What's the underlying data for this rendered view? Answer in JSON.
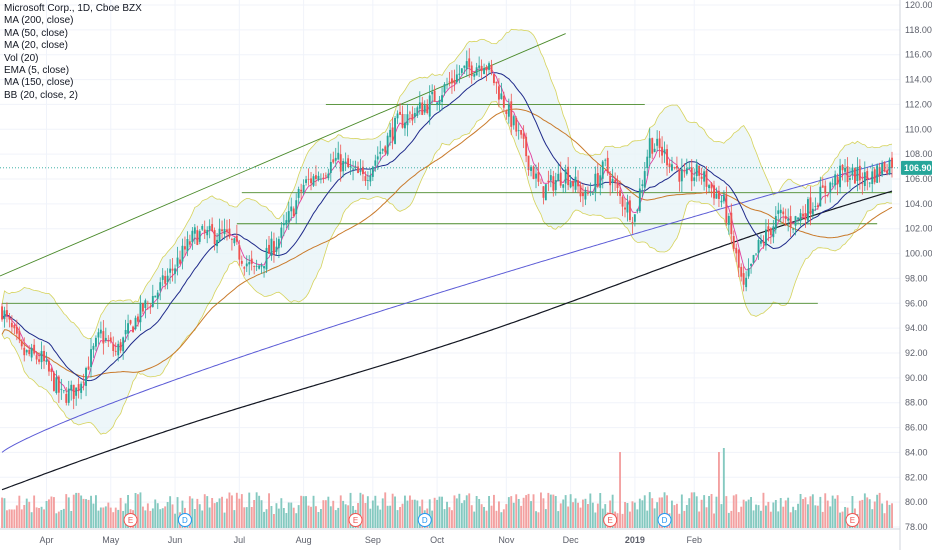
{
  "chart_data": {
    "type": "candlestick",
    "title": "Microsoft Corp., 1D, Cboe BZX",
    "indicators": [
      "MA (200, close)",
      "MA (50, close)",
      "MA (20, close)",
      "Vol (20)",
      "EMA (5, close)",
      "MA (150, close)",
      "BB (20, close, 2)"
    ],
    "y_axis": {
      "position": "right",
      "ylim": [
        77,
        120.5
      ],
      "ticks": [
        "120.00",
        "118.00",
        "116.00",
        "114.00",
        "112.00",
        "110.00",
        "108.00",
        "106.00",
        "104.00",
        "102.00",
        "100.00",
        "98.00",
        "96.00",
        "94.00",
        "92.00",
        "90.00",
        "88.00",
        "86.00",
        "84.00",
        "82.00",
        "80.00",
        "78.00"
      ]
    },
    "x_axis": {
      "months": [
        "Apr",
        "May",
        "Jun",
        "Jul",
        "Aug",
        "Sep",
        "Oct",
        "Nov",
        "Dec",
        "2019",
        "Feb"
      ]
    },
    "last_price": "106.90",
    "events": [
      "E",
      "D",
      "E",
      "D",
      "E",
      "D",
      "E"
    ],
    "horizontal_levels": [
      112.0,
      104.9,
      102.4,
      96.0
    ],
    "trendline": {
      "from": 98.2,
      "to": 117.7
    },
    "colors": {
      "up": "#26a69a",
      "down": "#ef5350",
      "volume_up": "#84c9c0",
      "volume_down": "#f3a0a0",
      "ma200": "#131722",
      "ma150": "#5b5bd6",
      "ma50": "#c97a2b",
      "ma20": "#1f2a8a",
      "ema5": "#e040a0",
      "bollinger": "#d6d35c",
      "levels": "#4a8a2a",
      "price_badge": "#26a69a"
    }
  }
}
